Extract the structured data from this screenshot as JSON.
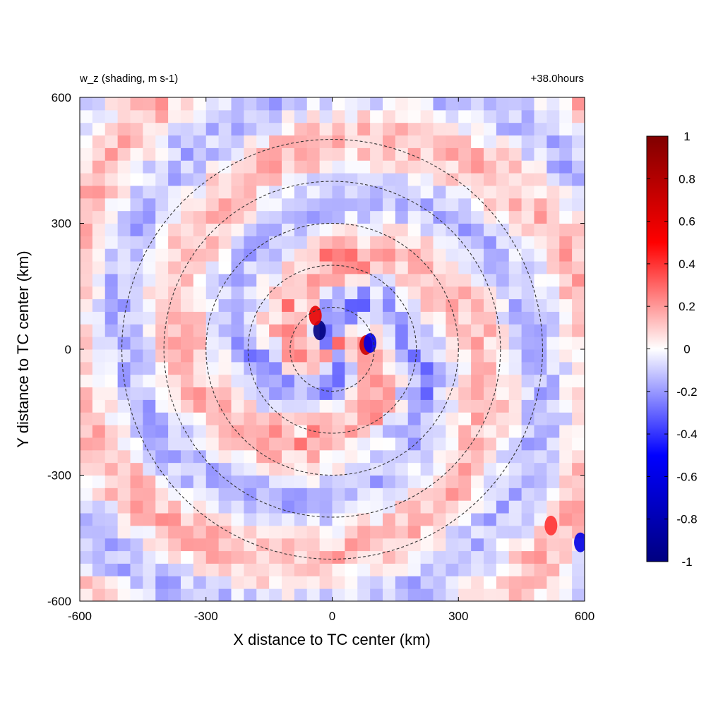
{
  "chart_data": {
    "type": "heatmap",
    "title": "w_z (shading, m s-1)",
    "time_label": "+38.0hours",
    "xlabel": "X distance to TC center (km)",
    "ylabel": "Y distance to TC center (km)",
    "xlim": [
      -600,
      600
    ],
    "ylim": [
      -600,
      600
    ],
    "xticks": [
      -600,
      -300,
      0,
      300,
      600
    ],
    "yticks": [
      -600,
      -300,
      0,
      300,
      600
    ],
    "xtick_labels": [
      "-600",
      "-300",
      "0",
      "300",
      "600"
    ],
    "ytick_labels": [
      "-600",
      "-300",
      "0",
      "300",
      "600"
    ],
    "range_rings_km": [
      100,
      200,
      300,
      400,
      500
    ],
    "colorbar": {
      "min": -1,
      "max": 1,
      "ticks": [
        1,
        0.8,
        0.6,
        0.4,
        0.2,
        0,
        -0.2,
        -0.4,
        -0.6,
        -0.8,
        -1
      ],
      "tick_labels": [
        "1",
        "0.8",
        "0.6",
        "0.4",
        "0.2",
        "0",
        "-0.2",
        "-0.4",
        "-0.6",
        "-0.8",
        "-1"
      ],
      "colors": [
        "#000080",
        "#0000ff",
        "#ffffff",
        "#ff0000",
        "#800000"
      ]
    },
    "features": [
      {
        "x": -30,
        "y": 45,
        "w": -1.0
      },
      {
        "x": -40,
        "y": 80,
        "w": 0.6
      },
      {
        "x": 80,
        "y": 10,
        "w": 0.7
      },
      {
        "x": 90,
        "y": 15,
        "w": -0.6
      },
      {
        "x": 520,
        "y": -420,
        "w": 0.4
      },
      {
        "x": 590,
        "y": -460,
        "w": -0.6
      }
    ]
  }
}
